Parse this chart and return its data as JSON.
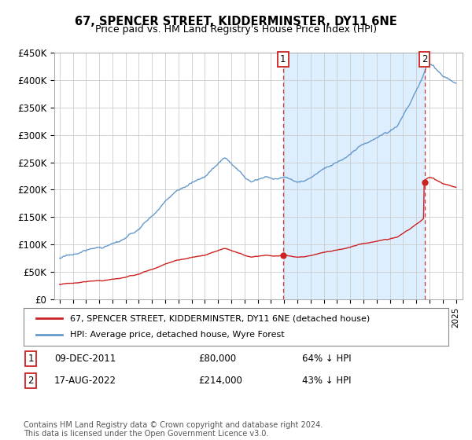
{
  "title": "67, SPENCER STREET, KIDDERMINSTER, DY11 6NE",
  "subtitle": "Price paid vs. HM Land Registry's House Price Index (HPI)",
  "hpi_color": "#6699cc",
  "price_color": "#cc2222",
  "vline_color": "#cc3333",
  "shade_color": "#ddeeff",
  "ylim": [
    0,
    450000
  ],
  "yticks": [
    0,
    50000,
    100000,
    150000,
    200000,
    250000,
    300000,
    350000,
    400000,
    450000
  ],
  "ytick_labels": [
    "£0",
    "£50K",
    "£100K",
    "£150K",
    "£200K",
    "£250K",
    "£300K",
    "£350K",
    "£400K",
    "£450K"
  ],
  "xlim_left": 1994.6,
  "xlim_right": 2025.5,
  "transaction1": {
    "date_num": 2011.92,
    "price": 80000,
    "label": "1",
    "date_str": "09-DEC-2011",
    "pct": "64% ↓ HPI"
  },
  "transaction2": {
    "date_num": 2022.62,
    "price": 214000,
    "label": "2",
    "date_str": "17-AUG-2022",
    "pct": "43% ↓ HPI"
  },
  "footer": "Contains HM Land Registry data © Crown copyright and database right 2024.\nThis data is licensed under the Open Government Licence v3.0.",
  "legend1_label": "67, SPENCER STREET, KIDDERMINSTER, DY11 6NE (detached house)",
  "legend2_label": "HPI: Average price, detached house, Wyre Forest"
}
